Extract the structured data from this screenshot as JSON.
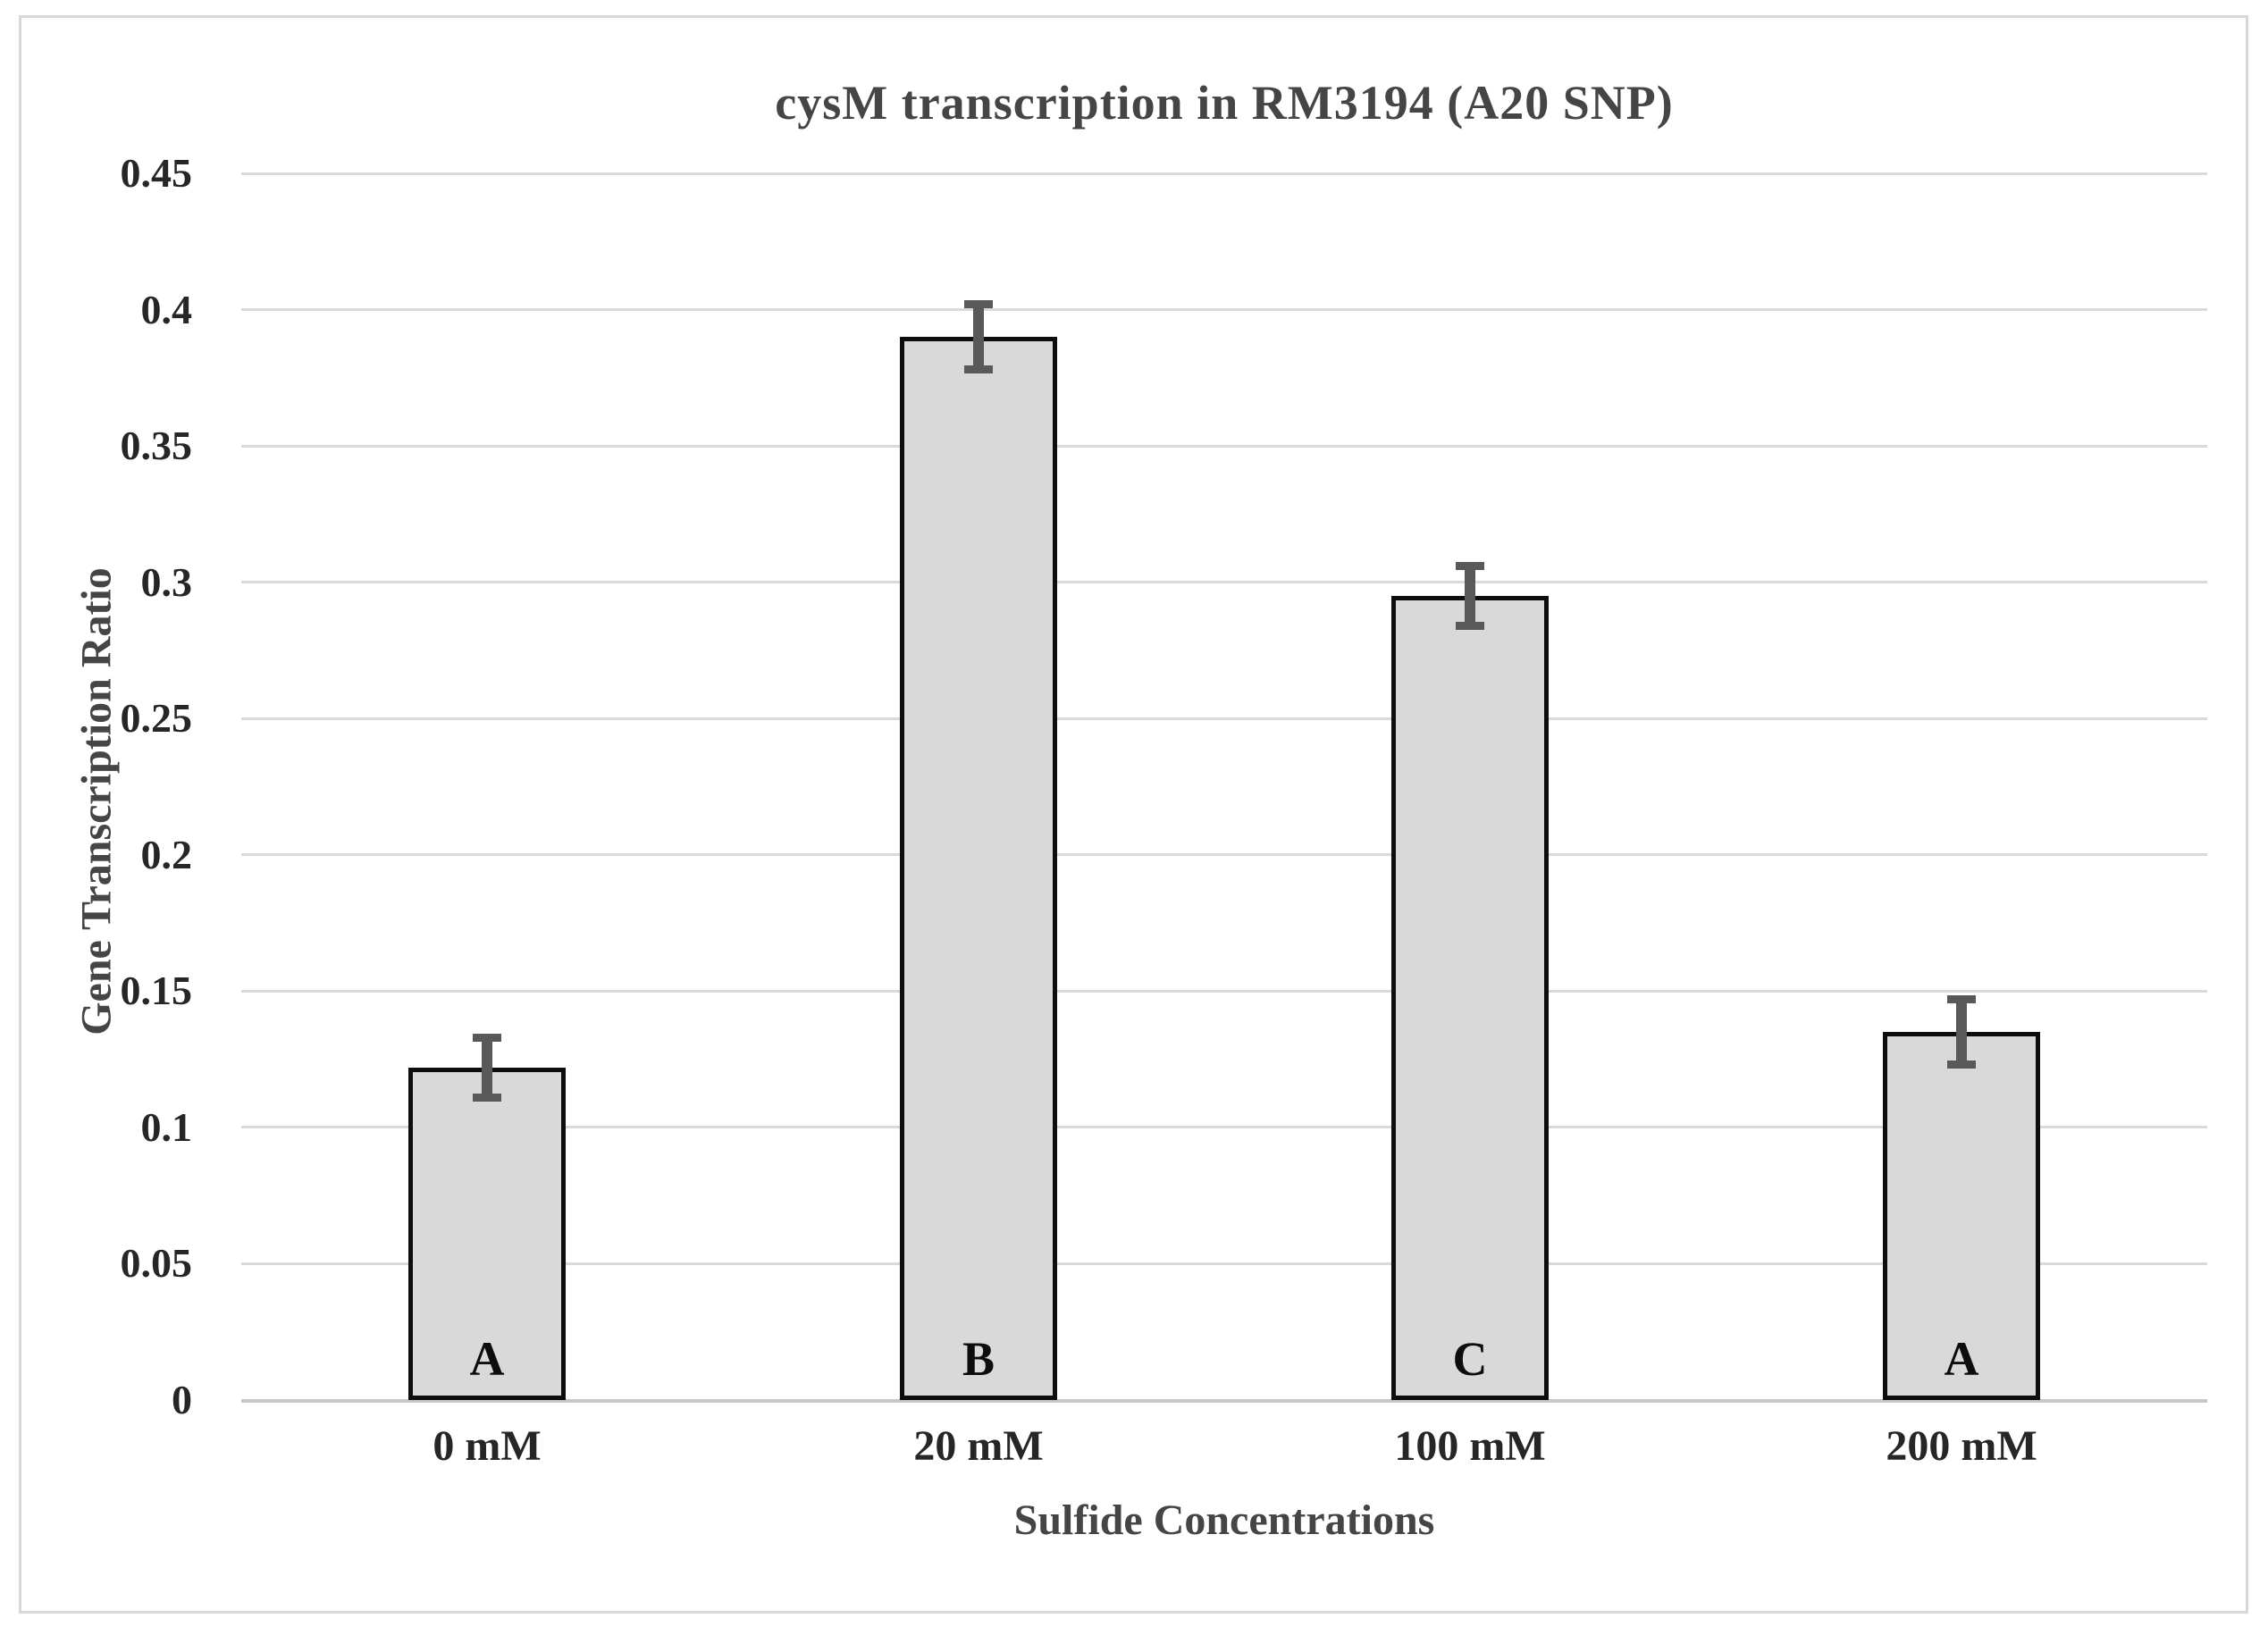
{
  "chart_data": {
    "type": "bar",
    "title": "cysM transcription in RM3194 (A20 SNP)",
    "xlabel": "Sulfide Concentrations",
    "ylabel": "Gene Transcription Ratio",
    "categories": [
      "0 mM",
      "20 mM",
      "100 mM",
      "200 mM"
    ],
    "values": [
      0.122,
      0.39,
      0.295,
      0.135
    ],
    "error_bars": [
      0.011,
      0.012,
      0.011,
      0.012
    ],
    "bar_letters": [
      "A",
      "B",
      "C",
      "A"
    ],
    "ylim": [
      0,
      0.45
    ],
    "ytick_step": 0.05,
    "ytick_labels": [
      "0",
      "0.05",
      "0.1",
      "0.15",
      "0.2",
      "0.25",
      "0.3",
      "0.35",
      "0.4",
      "0.45"
    ],
    "grid": true,
    "legend": false,
    "colors": {
      "background": "#ffffff",
      "figure_border": "#d8d8d8",
      "bar_fill": "#d9d9d9",
      "bar_border": "#0d0d0d",
      "error_bar": "#595959",
      "gridline": "#d9d9d9",
      "axis_line": "#c6c6c6",
      "tick_label_text": "#262626",
      "title_text": "#454545"
    }
  }
}
